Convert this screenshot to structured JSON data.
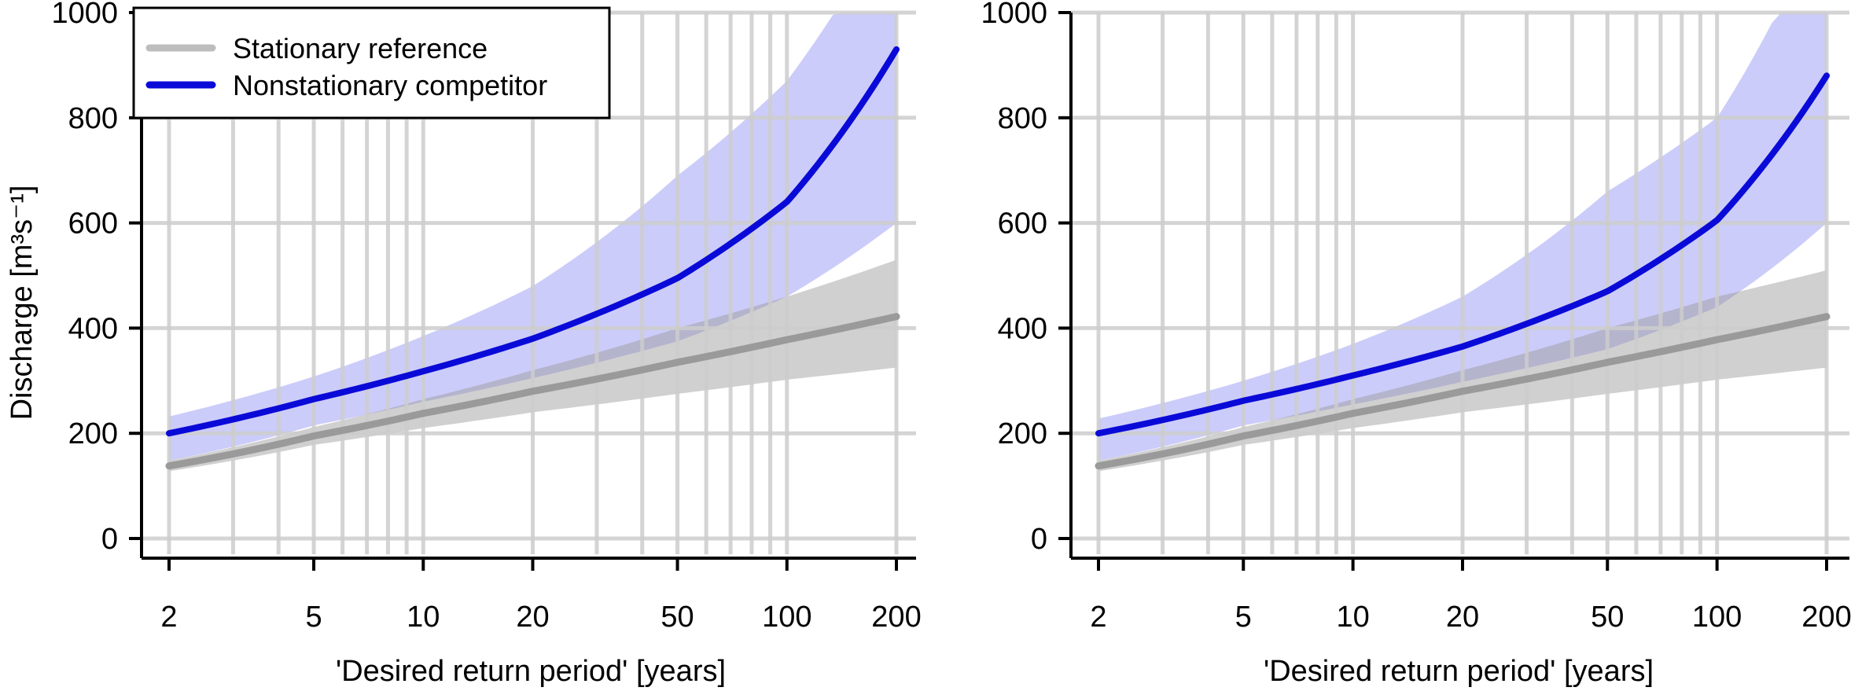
{
  "chart_data": [
    {
      "type": "line",
      "title": "",
      "xlabel": "'Desired return period' [years]",
      "ylabel": "Discharge [m³s⁻¹]",
      "x_scale": "log",
      "xlim": [
        2,
        200
      ],
      "ylim": [
        0,
        1000
      ],
      "x_ticks": [
        2,
        5,
        10,
        20,
        50,
        100,
        200
      ],
      "y_ticks": [
        0,
        200,
        400,
        600,
        800,
        1000
      ],
      "grid": true,
      "legend": {
        "placement": "top-left",
        "entries": [
          "Stationary reference",
          "Nonstationary competitor"
        ]
      },
      "x": [
        2,
        5,
        10,
        20,
        50,
        100,
        200
      ],
      "series": [
        {
          "name": "Stationary reference",
          "color": "#9a9a9a",
          "values": [
            138,
            195,
            238,
            280,
            335,
            378,
            422
          ],
          "band_lower": [
            128,
            178,
            210,
            240,
            275,
            302,
            325
          ],
          "band_upper": [
            148,
            212,
            265,
            320,
            400,
            460,
            530
          ]
        },
        {
          "name": "Nonstationary competitor",
          "color": "#0a0ad8",
          "values": [
            200,
            265,
            318,
            380,
            495,
            640,
            930
          ],
          "band_lower": [
            148,
            215,
            260,
            305,
            375,
            460,
            600
          ],
          "band_upper": [
            232,
            308,
            385,
            480,
            690,
            870,
            1200
          ]
        }
      ]
    },
    {
      "type": "line",
      "title": "",
      "xlabel": "'Desired return period' [years]",
      "ylabel": "",
      "x_scale": "log",
      "xlim": [
        2,
        200
      ],
      "ylim": [
        0,
        1000
      ],
      "x_ticks": [
        2,
        5,
        10,
        20,
        50,
        100,
        200
      ],
      "y_ticks": [
        0,
        200,
        400,
        600,
        800,
        1000
      ],
      "grid": true,
      "x": [
        2,
        5,
        10,
        20,
        50,
        100,
        200
      ],
      "series": [
        {
          "name": "Stationary reference",
          "color": "#9a9a9a",
          "values": [
            138,
            195,
            238,
            280,
            335,
            378,
            422
          ],
          "band_lower": [
            128,
            178,
            210,
            240,
            275,
            302,
            325
          ],
          "band_upper": [
            148,
            212,
            265,
            320,
            400,
            460,
            510
          ]
        },
        {
          "name": "Nonstationary competitor",
          "color": "#0a0ad8",
          "values": [
            200,
            262,
            310,
            365,
            470,
            605,
            880
          ],
          "band_lower": [
            148,
            215,
            255,
            298,
            360,
            440,
            600
          ],
          "band_upper": [
            228,
            300,
            370,
            460,
            660,
            800,
            1200
          ]
        }
      ]
    }
  ]
}
